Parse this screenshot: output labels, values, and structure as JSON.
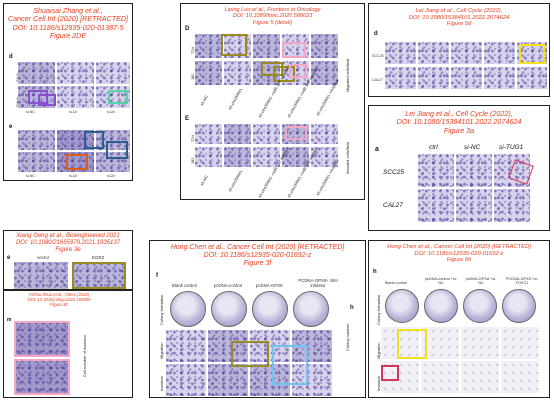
{
  "panels": {
    "p1": {
      "caption": [
        "Shuaisai Zhang et al.,",
        "Cancer Cell Int (2020) [RETRACTED]",
        "DOI: 10.1186/s12935-020-01387-5",
        "Figure 2DE"
      ],
      "letter_d": "d",
      "letter_e": "e",
      "row_labels": [
        "SN/a",
        "SiH/a"
      ],
      "col_labels": [
        "si-NC",
        "si-1#",
        "si-2#"
      ]
    },
    "p2": {
      "caption": [
        "Liping Luo et al., Frontiers in Oncology",
        "DOI: 10.3389/fonc.2020.588623",
        "Figure 5 (detail)"
      ],
      "letter_d": "D",
      "letter_e": "E",
      "row_labels": [
        "T24",
        "J82"
      ],
      "side_label_top": "Migrated cells/field",
      "side_label_bottom": "Invaded cells/field",
      "col_labels": [
        "sh-NC",
        "sh-circZFR#1",
        "sh-circZFR#1 +miR-107 inhibitor",
        "sh-circZFR#1 +miR-545 inhibitor",
        "sh-circZFR#1 +inhibitor"
      ]
    },
    "p3": {
      "caption": [
        "Lei Jiang et al., Cell Cycle (2022),",
        "DOI: 10.1080/15384101.2022.2074624",
        "Figure 5d"
      ],
      "letter": "d",
      "row_labels": [
        "SCC25",
        "CAL27"
      ]
    },
    "p4": {
      "caption": [
        "Lei Jiang et al., Cell Cycle (2022),",
        "DOI: 10.1080/15384101.2022.2074624",
        "Figure 3a"
      ],
      "letter": "a",
      "col_labels": [
        "ctrl",
        "si-NC",
        "si-TUG1"
      ],
      "row_labels": [
        "SCC25",
        "CAL27"
      ]
    },
    "p5": {
      "caption": [
        "Xiang Geng et al., Bioengineered 2021",
        "DOI: 10.1080/21655979.2021.1935137",
        "Figure 3e"
      ],
      "letter": "e",
      "col_labels": [
        "vector",
        "EGR2"
      ]
    },
    "p6": {
      "caption": [
        "Yizhou Zhou et al., Oltero (2022)",
        "DOI: 10.1016/j.oltop.2022.100089",
        "Figure 3E"
      ],
      "letter": "m",
      "side_label": "Cell number of invasion"
    },
    "p7": {
      "caption": [
        "Hong Chen et al., Cancer Cell Int (2020) [RETRACTED]",
        "DOI: 10.1186/s12935-020-01692-z",
        "Figure 3f"
      ],
      "letter": "f",
      "letter_h": "h",
      "col_labels": [
        "Blank control",
        "pcDNA-control",
        "pcDNA-GPX8",
        "PCDNA-GPX8+ Wnt inhibitor"
      ],
      "row_labels": [
        "Colony formation",
        "Migration",
        "Invasion"
      ],
      "side_label": "Colony number"
    },
    "p8": {
      "caption": [
        "Hong Chen et al., Cancer Cell Int (2020) [RETRACTED]",
        "DOI: 10.1186/s12935-020-01692-z",
        "Figure 6h"
      ],
      "letter": "h",
      "col_labels": [
        "Blank control",
        "pcDNA-control +si-NC",
        "pcDNA-GPX8 +si-NC",
        "PCDNA-GPX8 +si-FOXC1"
      ],
      "row_labels": [
        "Colony formation",
        "Migration",
        "Invasion"
      ]
    }
  },
  "colors": {
    "caption_red": "#e8401f",
    "box_purple": "#8a4fd0",
    "box_teal": "#56d6a6",
    "box_blue": "#2a5f8f",
    "box_orange": "#d9601c",
    "box_pink": "#f2a7c4",
    "box_olive": "#9a8a22",
    "box_yellow": "#f2e21c",
    "box_lightblue": "#6cc4f0",
    "box_crimson": "#d6365c"
  }
}
